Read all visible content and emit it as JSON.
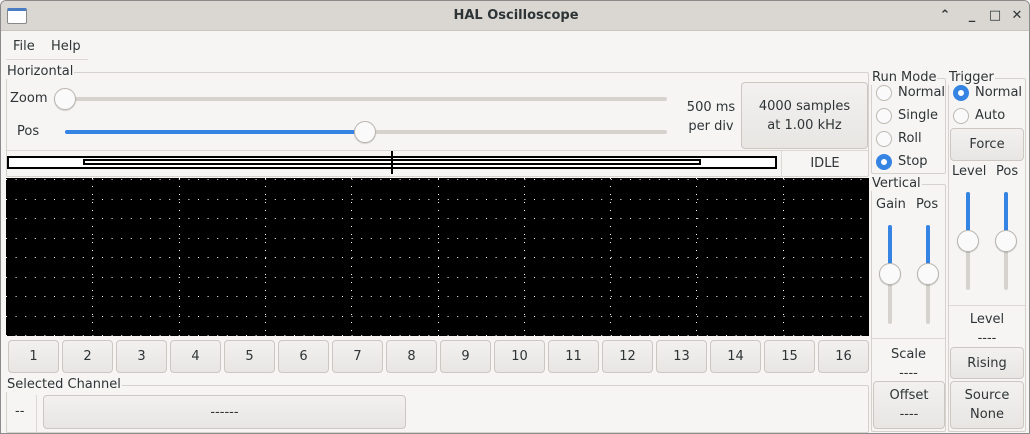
{
  "window": {
    "title": "HAL Oscilloscope",
    "icons": [
      "app-icon",
      "shade-icon",
      "minimize-icon",
      "maximize-icon",
      "close-icon"
    ]
  },
  "menu": {
    "items": [
      "File",
      "Help"
    ]
  },
  "horizontal": {
    "label": "Horizontal",
    "zoom_label": "Zoom",
    "pos_label": "Pos",
    "zoom_value": 0,
    "pos_value": 0.5,
    "per_div_value": "500 ms",
    "per_div_unit": "per div",
    "samples_line1": "4000 samples",
    "samples_line2": "at 1.00 kHz",
    "status": "IDLE"
  },
  "run_mode": {
    "label": "Run Mode",
    "options": [
      "Normal",
      "Single",
      "Roll",
      "Stop"
    ],
    "selected": "Stop"
  },
  "trigger": {
    "label": "Trigger",
    "options": [
      "Normal",
      "Auto"
    ],
    "selected": "Normal",
    "force": "Force",
    "level_label": "Level",
    "pos_label": "Pos",
    "level_value_label": "Level",
    "level_value": "----",
    "edge": "Rising",
    "source_label": "Source",
    "source_value": "None"
  },
  "vertical": {
    "label": "Vertical",
    "gain_label": "Gain",
    "pos_label": "Pos",
    "scale_label": "Scale",
    "scale_value": "----",
    "offset_label": "Offset",
    "offset_value": "----"
  },
  "channels": [
    "1",
    "2",
    "3",
    "4",
    "5",
    "6",
    "7",
    "8",
    "9",
    "10",
    "11",
    "12",
    "13",
    "14",
    "15",
    "16"
  ],
  "selected_channel": {
    "label": "Selected Channel",
    "number": "--",
    "name": "------"
  },
  "colors": {
    "accent": "#3584e4",
    "scope_bg": "#000000"
  }
}
